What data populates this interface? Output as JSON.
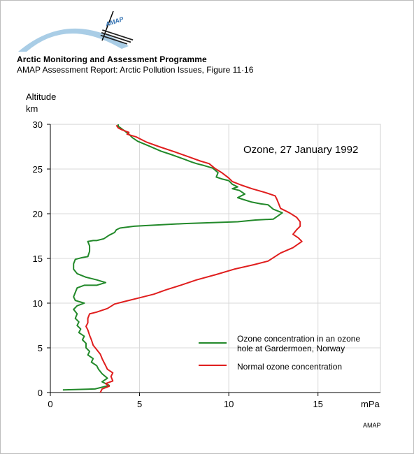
{
  "header": {
    "logo_text": "AMAP",
    "organization": "Arctic Monitoring and Assessment Programme",
    "report": "AMAP Assessment Report: Arctic Pollution Issues, Figure 11·16"
  },
  "footer": {
    "credit": "AMAP"
  },
  "colors": {
    "green": "#22892a",
    "red": "#e01e1e",
    "logo_blue": "#a9cde6",
    "grid": "#d8d8d8"
  },
  "chart_data": {
    "type": "line",
    "title": "Ozone, 27 January 1992",
    "xlabel": "mPa",
    "ylabel": "Altitude km",
    "ylabel_lines": [
      "Altitude",
      "km"
    ],
    "xlim": [
      0,
      18.5
    ],
    "ylim": [
      0,
      30
    ],
    "x_ticks": [
      0,
      5,
      10,
      15
    ],
    "y_ticks": [
      0,
      5,
      10,
      15,
      20,
      25,
      30
    ],
    "grid": true,
    "legend_position": "bottom-right",
    "series": [
      {
        "name": "Ozone concentration in an ozone hole at Gardermoen, Norway",
        "name_lines": [
          "Ozone concentration in an ozone",
          "hole at Gardermoen, Norway"
        ],
        "color": "#22892a",
        "points": [
          [
            0.7,
            0.3
          ],
          [
            2.5,
            0.4
          ],
          [
            3.3,
            0.8
          ],
          [
            2.9,
            1.2
          ],
          [
            3.2,
            1.6
          ],
          [
            2.9,
            2.1
          ],
          [
            2.7,
            2.6
          ],
          [
            2.6,
            3.0
          ],
          [
            2.3,
            3.4
          ],
          [
            2.4,
            3.8
          ],
          [
            2.1,
            4.2
          ],
          [
            2.2,
            4.6
          ],
          [
            2.0,
            5.0
          ],
          [
            2.0,
            5.5
          ],
          [
            1.8,
            5.9
          ],
          [
            1.9,
            6.3
          ],
          [
            1.6,
            6.7
          ],
          [
            1.7,
            7.1
          ],
          [
            1.5,
            7.5
          ],
          [
            1.6,
            7.9
          ],
          [
            1.4,
            8.3
          ],
          [
            1.5,
            8.8
          ],
          [
            1.3,
            9.3
          ],
          [
            1.5,
            9.7
          ],
          [
            1.9,
            10.0
          ],
          [
            1.4,
            10.3
          ],
          [
            1.3,
            10.7
          ],
          [
            1.4,
            11.2
          ],
          [
            1.5,
            11.7
          ],
          [
            1.9,
            12.0
          ],
          [
            2.6,
            12.0
          ],
          [
            3.1,
            12.3
          ],
          [
            2.6,
            12.6
          ],
          [
            2.0,
            12.9
          ],
          [
            1.5,
            13.3
          ],
          [
            1.3,
            13.8
          ],
          [
            1.3,
            14.4
          ],
          [
            1.4,
            14.9
          ],
          [
            1.8,
            15.1
          ],
          [
            2.1,
            15.2
          ],
          [
            2.2,
            15.8
          ],
          [
            2.2,
            16.4
          ],
          [
            2.1,
            16.9
          ],
          [
            2.4,
            17.0
          ],
          [
            2.6,
            17.0
          ],
          [
            3.0,
            17.2
          ],
          [
            3.3,
            17.6
          ],
          [
            3.6,
            17.9
          ],
          [
            3.7,
            18.2
          ],
          [
            3.9,
            18.4
          ],
          [
            4.7,
            18.6
          ],
          [
            5.6,
            18.7
          ],
          [
            7.5,
            18.9
          ],
          [
            10.5,
            19.1
          ],
          [
            11.5,
            19.3
          ],
          [
            12.5,
            19.4
          ],
          [
            13.0,
            20.1
          ],
          [
            12.5,
            20.5
          ],
          [
            12.2,
            21.0
          ],
          [
            11.8,
            21.1
          ],
          [
            11.3,
            21.3
          ],
          [
            10.8,
            21.6
          ],
          [
            10.5,
            21.8
          ],
          [
            10.9,
            22.2
          ],
          [
            10.6,
            22.6
          ],
          [
            10.2,
            22.8
          ],
          [
            10.5,
            23.0
          ],
          [
            10.2,
            23.3
          ],
          [
            10.0,
            23.7
          ],
          [
            9.6,
            23.9
          ],
          [
            9.3,
            24.1
          ],
          [
            9.4,
            24.6
          ],
          [
            9.1,
            25.1
          ],
          [
            8.6,
            25.4
          ],
          [
            8.2,
            25.6
          ],
          [
            7.9,
            25.8
          ],
          [
            7.5,
            26.1
          ],
          [
            6.8,
            26.6
          ],
          [
            6.2,
            27.0
          ],
          [
            5.5,
            27.6
          ],
          [
            4.9,
            28.1
          ],
          [
            4.6,
            28.5
          ],
          [
            4.4,
            28.9
          ],
          [
            4.2,
            29.2
          ],
          [
            4.0,
            29.5
          ],
          [
            3.8,
            29.8
          ],
          [
            3.8,
            30.0
          ]
        ]
      },
      {
        "name": "Normal ozone concentration",
        "color": "#e01e1e",
        "points": [
          [
            2.8,
            0.0
          ],
          [
            2.9,
            0.4
          ],
          [
            3.3,
            0.7
          ],
          [
            3.1,
            1.0
          ],
          [
            3.5,
            1.3
          ],
          [
            3.4,
            1.8
          ],
          [
            3.5,
            2.2
          ],
          [
            3.2,
            2.6
          ],
          [
            3.1,
            3.0
          ],
          [
            3.0,
            3.4
          ],
          [
            2.9,
            3.8
          ],
          [
            2.8,
            4.3
          ],
          [
            2.6,
            4.8
          ],
          [
            2.4,
            5.3
          ],
          [
            2.3,
            5.9
          ],
          [
            2.2,
            6.4
          ],
          [
            2.1,
            7.0
          ],
          [
            2.0,
            7.4
          ],
          [
            2.1,
            7.8
          ],
          [
            2.1,
            8.3
          ],
          [
            2.2,
            8.8
          ],
          [
            2.6,
            9.0
          ],
          [
            3.2,
            9.4
          ],
          [
            3.6,
            9.9
          ],
          [
            4.2,
            10.2
          ],
          [
            5.0,
            10.6
          ],
          [
            5.8,
            11.0
          ],
          [
            6.5,
            11.5
          ],
          [
            7.3,
            12.0
          ],
          [
            8.2,
            12.6
          ],
          [
            9.3,
            13.2
          ],
          [
            10.3,
            13.8
          ],
          [
            11.4,
            14.3
          ],
          [
            12.2,
            14.7
          ],
          [
            12.9,
            15.6
          ],
          [
            13.6,
            16.2
          ],
          [
            14.1,
            16.9
          ],
          [
            13.9,
            17.3
          ],
          [
            13.6,
            17.7
          ],
          [
            13.8,
            18.2
          ],
          [
            14.0,
            18.6
          ],
          [
            14.0,
            19.1
          ],
          [
            13.8,
            19.6
          ],
          [
            13.4,
            20.1
          ],
          [
            12.9,
            20.6
          ],
          [
            12.8,
            21.1
          ],
          [
            12.7,
            21.6
          ],
          [
            12.6,
            22.0
          ],
          [
            12.0,
            22.4
          ],
          [
            11.3,
            22.8
          ],
          [
            10.7,
            23.2
          ],
          [
            10.2,
            23.6
          ],
          [
            10.0,
            24.0
          ],
          [
            9.6,
            24.6
          ],
          [
            9.2,
            25.1
          ],
          [
            8.9,
            25.6
          ],
          [
            8.4,
            25.9
          ],
          [
            7.7,
            26.4
          ],
          [
            7.0,
            26.9
          ],
          [
            6.1,
            27.5
          ],
          [
            5.4,
            28.0
          ],
          [
            4.8,
            28.6
          ],
          [
            4.3,
            28.9
          ],
          [
            4.4,
            29.1
          ],
          [
            4.0,
            29.4
          ],
          [
            3.8,
            29.6
          ],
          [
            3.7,
            29.9
          ]
        ]
      }
    ]
  }
}
